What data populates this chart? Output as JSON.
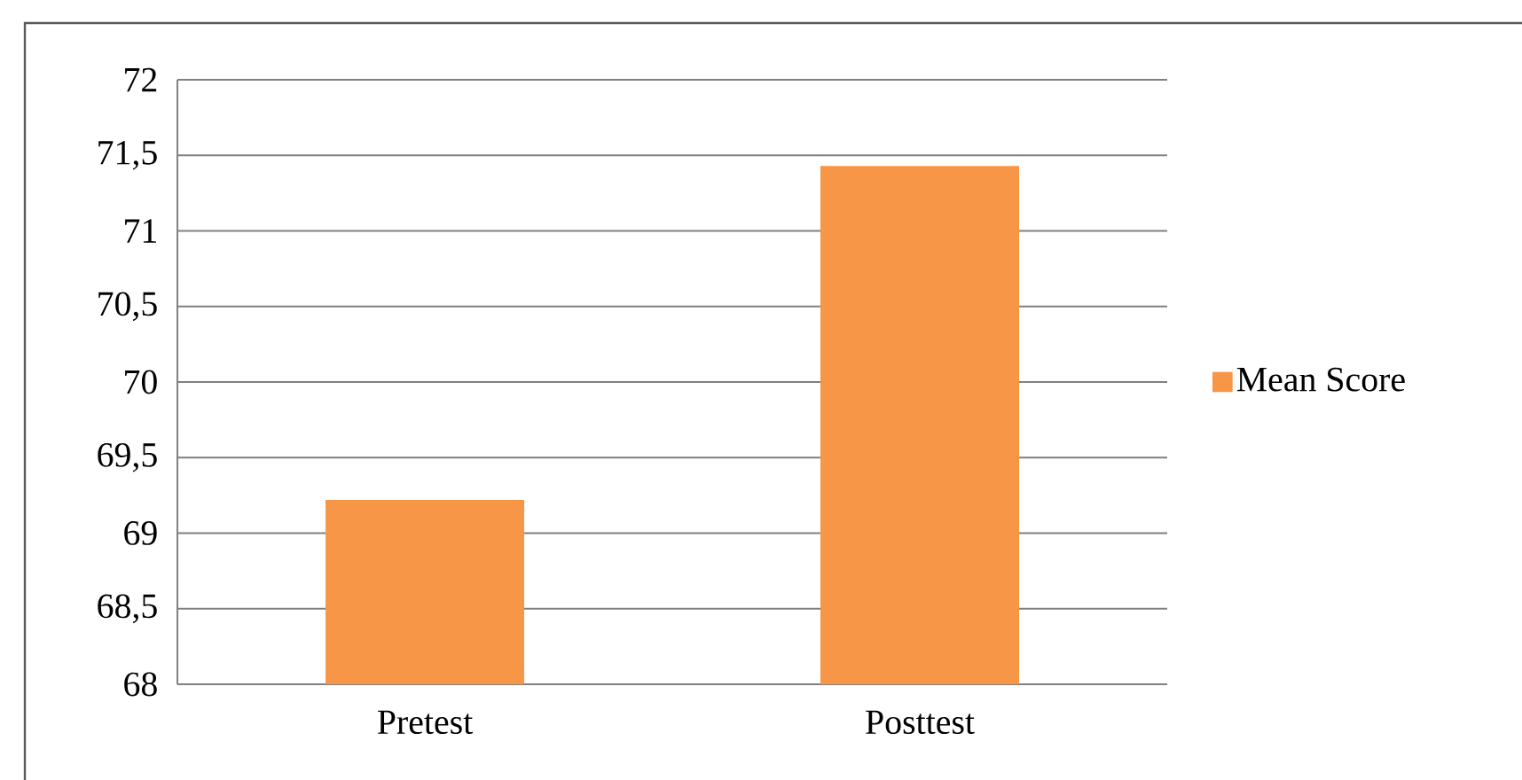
{
  "chart_data": {
    "type": "bar",
    "categories": [
      "Pretest",
      "Posttest"
    ],
    "series": [
      {
        "name": "Mean Score",
        "color": "#f79646",
        "values": [
          69.22,
          71.43
        ]
      }
    ],
    "ylim": [
      68,
      72
    ],
    "yticks": [
      68,
      {
        "value": 68.5,
        "label": "68,5"
      },
      69,
      {
        "value": 69.5,
        "label": "69,5"
      },
      70,
      {
        "value": 70.5,
        "label": "70,5"
      },
      71,
      {
        "value": 71.5,
        "label": "71,5"
      },
      72
    ],
    "grid": "y",
    "legend": "right"
  }
}
